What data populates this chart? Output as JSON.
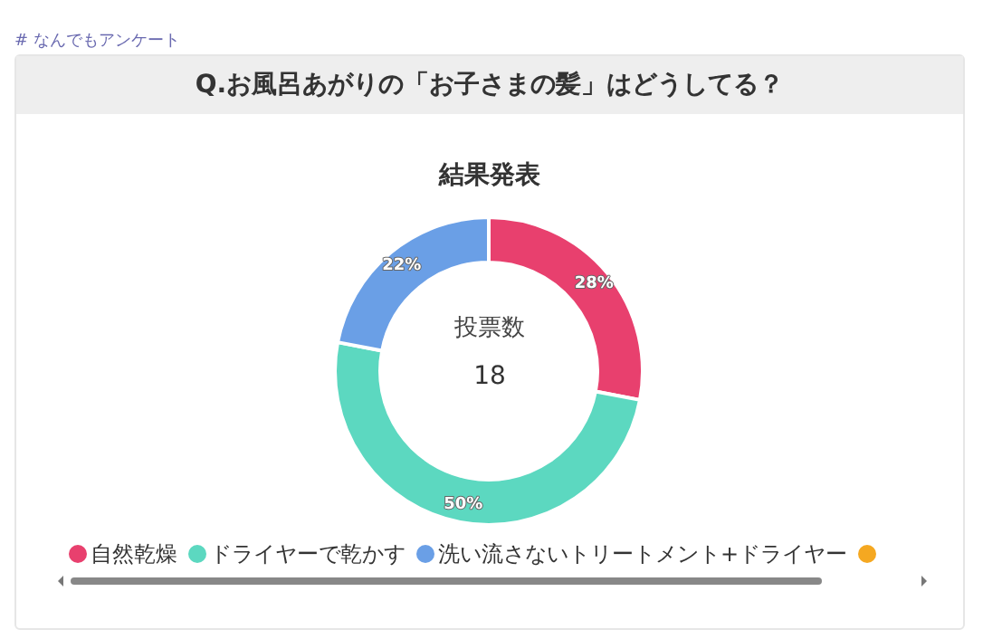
{
  "chart_data": {
    "type": "donut",
    "title": "Q.お風呂あがりの「お子さまの髪」はどうしてる？",
    "subtitle": "結果発表",
    "categories": [
      "自然乾燥",
      "ドライヤーで乾かす",
      "洗い流さないトリートメント+ドライヤー",
      null
    ],
    "values": [
      28,
      50,
      22,
      0
    ],
    "colors": [
      "#e8406e",
      "#5cd8c0",
      "#6a9fe6",
      "#f5a821"
    ],
    "value_labels": [
      "28%",
      "50%",
      "22%",
      null
    ],
    "legend": "bottom",
    "annotations": [
      "# なんでもアンケート",
      "投票数",
      "18"
    ]
  }
}
